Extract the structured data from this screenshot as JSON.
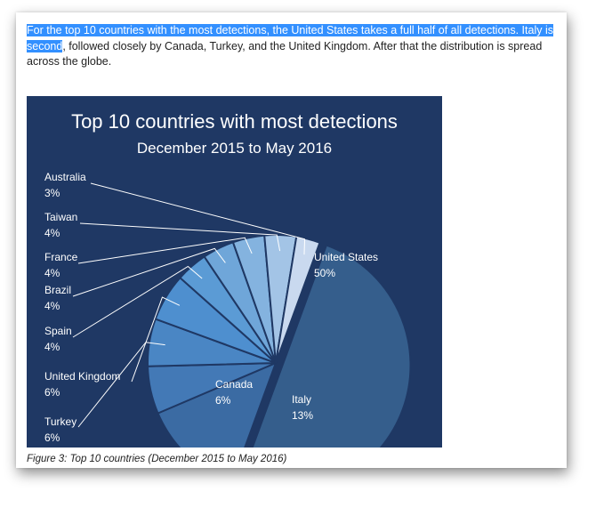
{
  "paragraph": {
    "highlighted": "For the top 10 countries with the most detections, the United States takes a full half of all detections. Italy is second",
    "rest": ", followed closely by Canada, Turkey, and the United Kingdom. After that the distribution is spread across the globe."
  },
  "chart_data": {
    "type": "pie",
    "title": "Top 10 countries with most detections",
    "subtitle": "December 2015 to May 2016",
    "background": "#1f3864",
    "slices": [
      {
        "label": "United States",
        "value": 50,
        "display": "50%",
        "color": "#355e8c"
      },
      {
        "label": "Italy",
        "value": 13,
        "display": "13%",
        "color": "#3b6ba3"
      },
      {
        "label": "Canada",
        "value": 6,
        "display": "6%",
        "color": "#4379b6"
      },
      {
        "label": "Turkey",
        "value": 6,
        "display": "6%",
        "color": "#4a86c4"
      },
      {
        "label": "United Kingdom",
        "value": 6,
        "display": "6%",
        "color": "#4e8fcf"
      },
      {
        "label": "Spain",
        "value": 4,
        "display": "4%",
        "color": "#5b9bd5"
      },
      {
        "label": "Brazil",
        "value": 4,
        "display": "4%",
        "color": "#6fa6d9"
      },
      {
        "label": "France",
        "value": 4,
        "display": "4%",
        "color": "#84b3df"
      },
      {
        "label": "Taiwan",
        "value": 4,
        "display": "4%",
        "color": "#a3c4e6"
      },
      {
        "label": "Australia",
        "value": 3,
        "display": "3%",
        "color": "#c9d9ef"
      }
    ],
    "exploded": "United States"
  },
  "caption": "Figure 3: Top 10 countries (December 2015 to May 2016)"
}
